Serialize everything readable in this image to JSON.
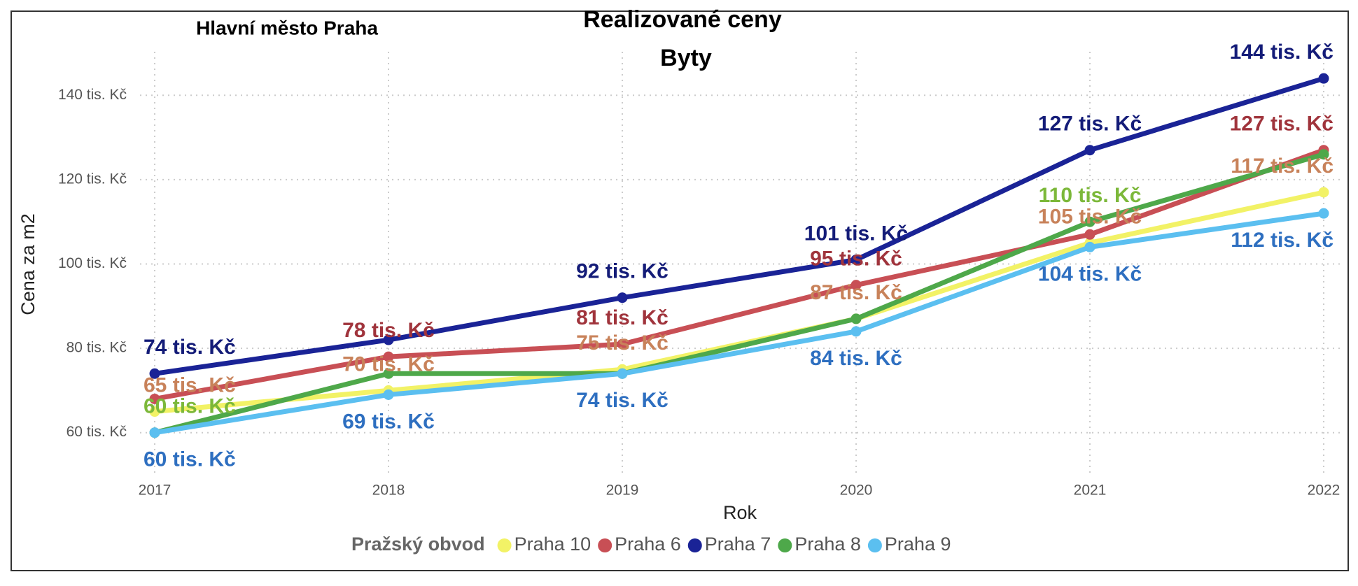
{
  "chart_data": {
    "type": "line",
    "title": "Realizované ceny",
    "subtitle": "Byty",
    "region": "Hlavní město Praha",
    "x_label": "Rok",
    "y_label": "Cena za m2",
    "legend_title": "Pražský obvod",
    "legend": "bottom",
    "grid": true,
    "categories": [
      "2017",
      "2018",
      "2019",
      "2020",
      "2021",
      "2022"
    ],
    "ylim": [
      50,
      150
    ],
    "yticks": [
      {
        "value": 60,
        "label": "60 tis. Kč"
      },
      {
        "value": 80,
        "label": "80 tis. Kč"
      },
      {
        "value": 100,
        "label": "100 tis. Kč"
      },
      {
        "value": 120,
        "label": "120 tis. Kč"
      },
      {
        "value": 140,
        "label": "140 tis. Kč"
      }
    ],
    "series": [
      {
        "name": "Praha 10",
        "color": "#f2f266",
        "label_color": "#c8825a",
        "values": [
          65,
          70,
          75,
          87,
          105,
          117
        ],
        "value_labels": [
          "65 tis. Kč",
          "70 tis. Kč",
          "75 tis. Kč",
          "87 tis. Kč",
          "105 tis. Kč",
          "117 tis. Kč"
        ]
      },
      {
        "name": "Praha 6",
        "color": "#c84f55",
        "label_color": "#a0343c",
        "values": [
          68,
          78,
          81,
          95,
          107,
          127
        ],
        "value_labels": [
          null,
          "78 tis. Kč",
          "81 tis. Kč",
          "95 tis. Kč",
          null,
          "127 tis. Kč"
        ]
      },
      {
        "name": "Praha 7",
        "color": "#1a2396",
        "label_color": "#141c78",
        "values": [
          74,
          82,
          92,
          101,
          127,
          144
        ],
        "value_labels": [
          "74 tis. Kč",
          null,
          "92 tis. Kč",
          "101 tis. Kč",
          "127 tis. Kč",
          "144 tis. Kč"
        ]
      },
      {
        "name": "Praha 8",
        "color": "#4ea84a",
        "label_color": "#7cb83a",
        "values": [
          60,
          74,
          74,
          87,
          110,
          126
        ],
        "value_labels": [
          "60 tis. Kč",
          null,
          null,
          null,
          "110 tis. Kč",
          null
        ]
      },
      {
        "name": "Praha 9",
        "color": "#5bbff0",
        "label_color": "#2e6fc0",
        "values": [
          60,
          69,
          74,
          84,
          104,
          112
        ],
        "value_labels": [
          "60 tis. Kč",
          "69 tis. Kč",
          "74 tis. Kč",
          "84 tis. Kč",
          "104 tis. Kč",
          "112 tis. Kč"
        ]
      }
    ]
  }
}
